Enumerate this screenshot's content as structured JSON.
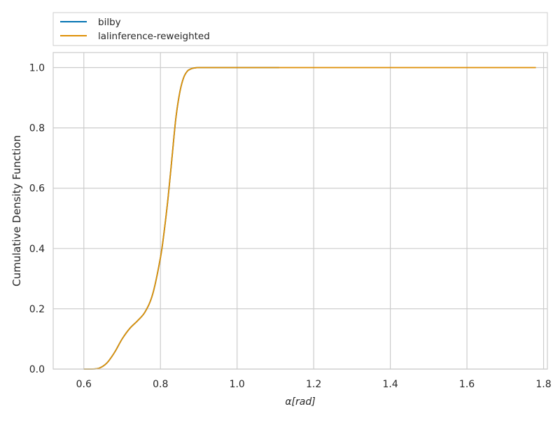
{
  "chart_data": {
    "type": "line",
    "title": "",
    "xlabel": "α[rad]",
    "ylabel": "Cumulative Density Function",
    "xlim": [
      0.52,
      1.81
    ],
    "ylim": [
      0.0,
      1.05
    ],
    "x_ticks": [
      0.6,
      0.8,
      1.0,
      1.2,
      1.4,
      1.6,
      1.8
    ],
    "x_tick_labels": [
      "0.6",
      "0.8",
      "1.0",
      "1.2",
      "1.4",
      "1.6",
      "1.8"
    ],
    "y_ticks": [
      0.0,
      0.2,
      0.4,
      0.6,
      0.8,
      1.0
    ],
    "y_tick_labels": [
      "0.0",
      "0.2",
      "0.4",
      "0.6",
      "0.8",
      "1.0"
    ],
    "grid": true,
    "legend_position": "top, above plot",
    "series": [
      {
        "name": "bilby",
        "color": "#0173b2",
        "x": [
          0.6,
          0.62,
          0.64,
          0.66,
          0.68,
          0.7,
          0.72,
          0.74,
          0.76,
          0.78,
          0.8,
          0.81,
          0.82,
          0.83,
          0.84,
          0.85,
          0.86,
          0.87,
          0.88,
          0.89,
          0.9,
          0.92,
          0.95,
          1.0,
          1.05,
          1.11
        ],
        "y": [
          0.0,
          0.0,
          0.003,
          0.02,
          0.055,
          0.1,
          0.135,
          0.16,
          0.19,
          0.25,
          0.37,
          0.46,
          0.57,
          0.7,
          0.83,
          0.915,
          0.965,
          0.988,
          0.996,
          0.999,
          1.0,
          1.0,
          1.0,
          1.0,
          1.0,
          1.0
        ]
      },
      {
        "name": "lalinference-reweighted",
        "color": "#de8f05",
        "x": [
          0.6,
          0.62,
          0.64,
          0.66,
          0.68,
          0.7,
          0.72,
          0.74,
          0.76,
          0.78,
          0.8,
          0.81,
          0.82,
          0.83,
          0.84,
          0.85,
          0.86,
          0.87,
          0.88,
          0.89,
          0.9,
          0.92,
          0.95,
          1.0,
          1.2,
          1.4,
          1.6,
          1.78
        ],
        "y": [
          0.0,
          0.0,
          0.003,
          0.02,
          0.055,
          0.1,
          0.135,
          0.16,
          0.19,
          0.25,
          0.37,
          0.46,
          0.57,
          0.7,
          0.83,
          0.915,
          0.965,
          0.988,
          0.996,
          0.999,
          1.0,
          1.0,
          1.0,
          1.0,
          1.0,
          1.0,
          1.0,
          1.0
        ]
      }
    ]
  }
}
